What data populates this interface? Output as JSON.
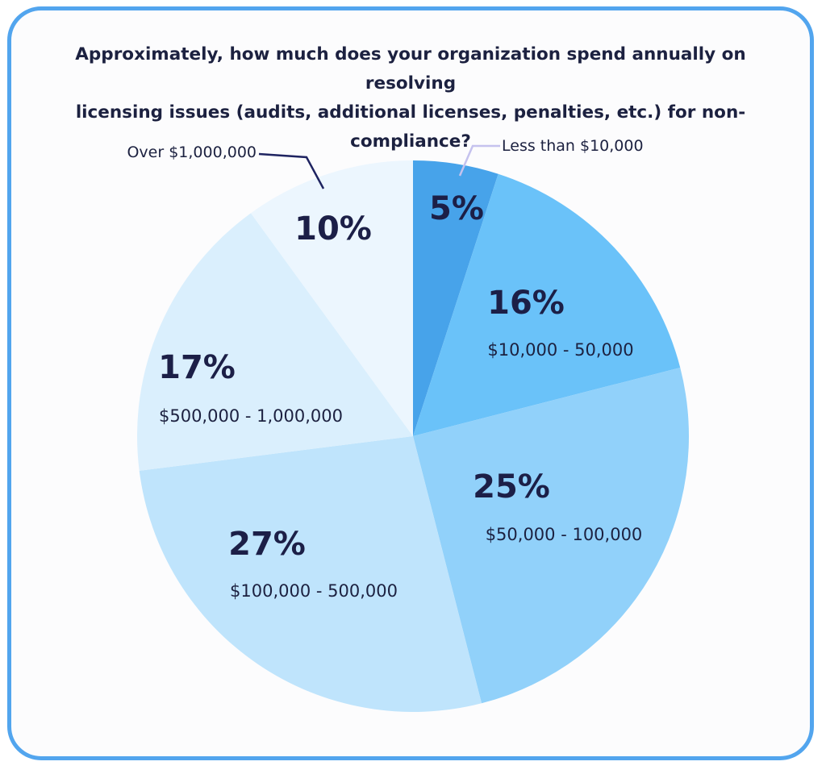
{
  "chart_data": {
    "type": "pie",
    "title_lines": [
      "Approximately, how much does your organization spend annually on resolving",
      "licensing issues (audits, additional licenses, penalties, etc.) for non-compliance?"
    ],
    "slices": [
      {
        "category": "Less than $10,000",
        "value": 5,
        "label": "5%",
        "color": "#47a3ea",
        "label_style": "callout"
      },
      {
        "category": "$10,000 - 50,000",
        "value": 16,
        "label": "16%",
        "color": "#6ac2f9",
        "label_style": "inside"
      },
      {
        "category": "$50,000 - 100,000",
        "value": 25,
        "label": "25%",
        "color": "#91d1fa",
        "label_style": "inside"
      },
      {
        "category": "$100,000 - 500,000",
        "value": 27,
        "label": "27%",
        "color": "#bfe4fc",
        "label_style": "inside"
      },
      {
        "category": "$500,000 - 1,000,000",
        "value": 17,
        "label": "17%",
        "color": "#daeffd",
        "label_style": "inside"
      },
      {
        "category": "Over $1,000,000",
        "value": 10,
        "label": "10%",
        "color": "#ecf6fe",
        "label_style": "callout"
      }
    ],
    "start_angle": "12 o'clock",
    "direction": "clockwise",
    "callout_colors": {
      "Less than $10,000": "#c5c2ee",
      "Over $1,000,000": "#1f2461"
    }
  },
  "colors": {
    "border": "#52a5ee",
    "text": "#1c2140"
  }
}
